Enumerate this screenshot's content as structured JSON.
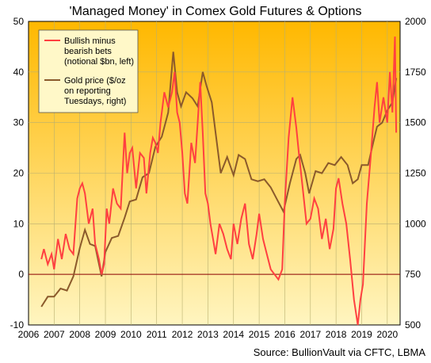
{
  "chart_data": {
    "type": "line",
    "title": "'Managed Money' in Comex Gold Futures & Options",
    "source": "Source: BullionVault via CFTC, LBMA",
    "x_tick_labels": [
      "2006",
      "2007",
      "2008",
      "2009",
      "2010",
      "2011",
      "2012",
      "2013",
      "2014",
      "2015",
      "2016",
      "2017",
      "2018",
      "2019",
      "2020"
    ],
    "xlim": [
      2006,
      2020.5
    ],
    "ylim_left": [
      -10,
      50
    ],
    "ylim_right": [
      500,
      2000
    ],
    "left_tick_labels": [
      "-10",
      "0",
      "10",
      "20",
      "30",
      "40",
      "50"
    ],
    "right_tick_labels": [
      "500",
      "750",
      "1000",
      "1250",
      "1500",
      "1750",
      "2000"
    ],
    "legend_position": "top-left",
    "zero_line": 0,
    "series": [
      {
        "name": "Bullish minus bearish bets (notional $bn, left)",
        "axis": "left",
        "color": "#ff4040",
        "x": [
          2006.5,
          2006.6,
          2006.75,
          2006.9,
          2007.0,
          2007.15,
          2007.3,
          2007.45,
          2007.6,
          2007.75,
          2007.9,
          2008.0,
          2008.1,
          2008.2,
          2008.35,
          2008.5,
          2008.6,
          2008.75,
          2008.85,
          2008.95,
          2009.05,
          2009.15,
          2009.3,
          2009.45,
          2009.6,
          2009.75,
          2009.85,
          2009.95,
          2010.05,
          2010.2,
          2010.35,
          2010.5,
          2010.6,
          2010.75,
          2010.85,
          2010.95,
          2011.05,
          2011.15,
          2011.3,
          2011.45,
          2011.6,
          2011.7,
          2011.8,
          2011.9,
          2012.0,
          2012.1,
          2012.2,
          2012.35,
          2012.5,
          2012.6,
          2012.7,
          2012.8,
          2012.9,
          2013.0,
          2013.1,
          2013.2,
          2013.3,
          2013.45,
          2013.6,
          2013.75,
          2013.9,
          2014.0,
          2014.15,
          2014.3,
          2014.45,
          2014.6,
          2014.75,
          2014.9,
          2015.0,
          2015.15,
          2015.3,
          2015.45,
          2015.6,
          2015.75,
          2015.9,
          2016.0,
          2016.15,
          2016.3,
          2016.45,
          2016.55,
          2016.7,
          2016.85,
          2017.0,
          2017.15,
          2017.3,
          2017.45,
          2017.6,
          2017.75,
          2017.9,
          2018.0,
          2018.1,
          2018.25,
          2018.4,
          2018.55,
          2018.7,
          2018.85,
          2018.95,
          2019.05,
          2019.2,
          2019.35,
          2019.5,
          2019.6,
          2019.7,
          2019.85,
          2020.0,
          2020.1,
          2020.2,
          2020.3,
          2020.35
        ],
        "y": [
          3,
          5,
          2,
          4,
          1,
          7,
          3,
          8,
          5,
          4,
          15,
          17,
          18,
          16,
          10,
          13,
          6,
          3,
          0,
          2,
          13,
          10,
          17,
          14,
          13,
          28,
          20,
          24,
          25,
          17,
          24,
          23,
          16,
          24,
          27,
          26,
          24,
          30,
          36,
          33,
          36,
          40,
          32,
          30,
          24,
          16,
          14,
          26,
          22,
          30,
          38,
          28,
          16,
          14,
          10,
          7,
          4,
          10,
          8,
          5,
          3,
          10,
          6,
          11,
          14,
          6,
          3,
          8,
          12,
          7,
          4,
          1,
          0,
          -1,
          1,
          14,
          27,
          35,
          29,
          24,
          17,
          10,
          11,
          15,
          13,
          7,
          11,
          5,
          9,
          17,
          19,
          14,
          10,
          3,
          -5,
          -10,
          -5,
          -2,
          14,
          23,
          33,
          38,
          30,
          35,
          30,
          40,
          32,
          47,
          28
        ],
        "values_note": ""
      },
      {
        "name": "Gold price ($/oz on reporting Tuesdays, right)",
        "axis": "right",
        "color": "#8b5a2b",
        "x": [
          2006.5,
          2006.75,
          2007.0,
          2007.25,
          2007.5,
          2007.75,
          2008.0,
          2008.2,
          2008.4,
          2008.6,
          2008.85,
          2009.0,
          2009.25,
          2009.5,
          2009.75,
          2009.95,
          2010.2,
          2010.45,
          2010.7,
          2010.95,
          2011.2,
          2011.45,
          2011.65,
          2011.8,
          2011.95,
          2012.15,
          2012.4,
          2012.6,
          2012.8,
          2012.95,
          2013.15,
          2013.3,
          2013.5,
          2013.75,
          2014.0,
          2014.2,
          2014.45,
          2014.7,
          2014.95,
          2015.2,
          2015.45,
          2015.7,
          2015.95,
          2016.2,
          2016.45,
          2016.6,
          2016.8,
          2016.95,
          2017.2,
          2017.45,
          2017.7,
          2017.95,
          2018.2,
          2018.45,
          2018.65,
          2018.85,
          2019.0,
          2019.25,
          2019.45,
          2019.6,
          2019.8,
          2020.0,
          2020.1,
          2020.2,
          2020.35
        ],
        "y": [
          590,
          640,
          640,
          680,
          670,
          740,
          880,
          970,
          900,
          890,
          740,
          860,
          930,
          940,
          1030,
          1110,
          1120,
          1230,
          1250,
          1380,
          1430,
          1550,
          1850,
          1650,
          1580,
          1650,
          1620,
          1580,
          1750,
          1680,
          1600,
          1450,
          1250,
          1330,
          1240,
          1340,
          1320,
          1220,
          1210,
          1220,
          1180,
          1120,
          1060,
          1200,
          1320,
          1340,
          1250,
          1150,
          1260,
          1250,
          1300,
          1290,
          1330,
          1290,
          1200,
          1220,
          1290,
          1290,
          1400,
          1480,
          1500,
          1560,
          1580,
          1600,
          1720
        ]
      }
    ]
  }
}
